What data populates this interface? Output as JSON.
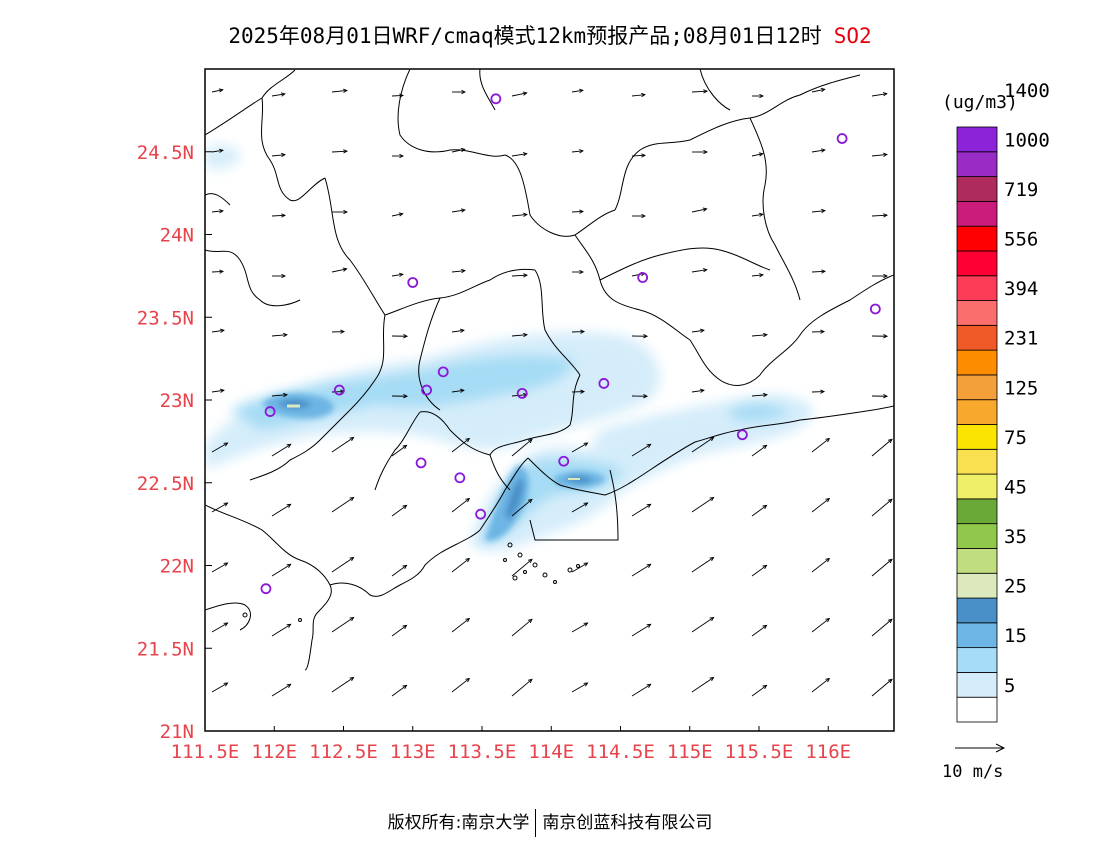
{
  "title": {
    "main": "2025年08月01日WRF/cmaq模式12km预报产品;08月01日12时",
    "species": "SO2"
  },
  "colors": {
    "axis_label": "#e8424a",
    "species": "#e8000b",
    "station": "#8b18d8"
  },
  "map": {
    "lon_labels": [
      "111.5E",
      "112E",
      "112.5E",
      "113E",
      "113.5E",
      "114E",
      "114.5E",
      "115E",
      "115.5E",
      "116E"
    ],
    "lat_labels": [
      "21N",
      "21.5N",
      "22N",
      "22.5N",
      "23N",
      "23.5N",
      "24N",
      "24.5N"
    ],
    "stations": [
      {
        "lon": 113.6,
        "lat": 24.82
      },
      {
        "lon": 116.1,
        "lat": 24.58
      },
      {
        "lon": 113.0,
        "lat": 23.71
      },
      {
        "lon": 114.66,
        "lat": 23.74
      },
      {
        "lon": 116.34,
        "lat": 23.55
      },
      {
        "lon": 113.22,
        "lat": 23.17
      },
      {
        "lon": 113.1,
        "lat": 23.06
      },
      {
        "lon": 112.47,
        "lat": 23.06
      },
      {
        "lon": 113.79,
        "lat": 23.04
      },
      {
        "lon": 114.38,
        "lat": 23.1
      },
      {
        "lon": 111.97,
        "lat": 22.93
      },
      {
        "lon": 115.38,
        "lat": 22.79
      },
      {
        "lon": 113.06,
        "lat": 22.62
      },
      {
        "lon": 114.09,
        "lat": 22.63
      },
      {
        "lon": 113.34,
        "lat": 22.53
      },
      {
        "lon": 113.49,
        "lat": 22.31
      },
      {
        "lon": 111.94,
        "lat": 21.86
      }
    ]
  },
  "legend": {
    "unit": "(ug/m3)",
    "colors": [
      "#ffffff",
      "#d5edfa",
      "#a6dcf5",
      "#6db5e4",
      "#4890c7",
      "#dce9bc",
      "#c0dd80",
      "#8fc84a",
      "#6aa838",
      "#f0f068",
      "#f8e050",
      "#fae400",
      "#f8a82c",
      "#f3a03b",
      "#fe8c00",
      "#ef5a28",
      "#fb6e6e",
      "#fc3b56",
      "#fe0033",
      "#ff0000",
      "#cc1c7b",
      "#ae2c5b",
      "#9a2cc6",
      "#8d23d8"
    ],
    "labels": [
      "5",
      "15",
      "25",
      "35",
      "45",
      "75",
      "125",
      "231",
      "394",
      "556",
      "719",
      "1000",
      "1400"
    ]
  },
  "vector": {
    "label": "10 m/s"
  },
  "footer": {
    "left": "版权所有:南京大学",
    "right": "南京创蓝科技有限公司"
  }
}
